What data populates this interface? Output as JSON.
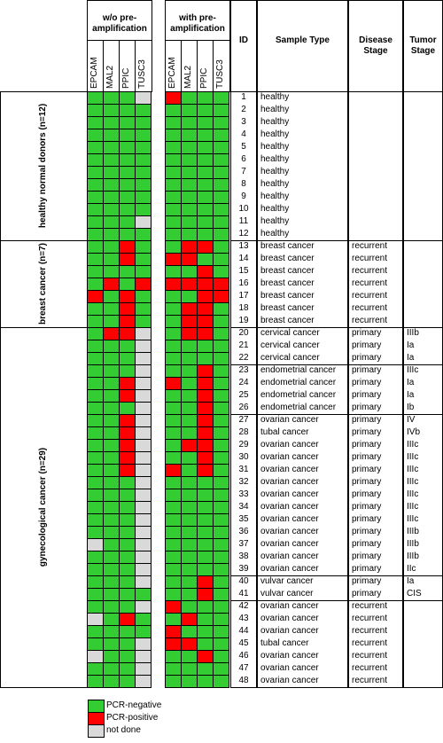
{
  "header": {
    "without": "w/o pre-amplification",
    "with": "with pre-amplification",
    "genes": [
      "EPCAM",
      "MAL2",
      "PPIC",
      "TUSC3"
    ],
    "id": "ID",
    "sample_type": "Sample Type",
    "disease_stage": "Disease Stage",
    "tumor_stage": "Tumor Stage"
  },
  "legend": [
    {
      "label": "PCR-negative",
      "color": "#33cc33"
    },
    {
      "label": "PCR-positive",
      "color": "#ff0000"
    },
    {
      "label": "not done",
      "color": "#d9d9d9"
    }
  ],
  "groups": [
    {
      "label": "healthy normal donors (n=12)",
      "blocks": [
        [
          {
            "id": 1,
            "sample_type": "healthy",
            "without": [
              0,
              0,
              0,
              2
            ],
            "with": [
              1,
              0,
              0,
              0
            ]
          },
          {
            "id": 2,
            "sample_type": "healthy",
            "without": [
              0,
              0,
              0,
              0
            ],
            "with": [
              0,
              0,
              0,
              0
            ]
          },
          {
            "id": 3,
            "sample_type": "healthy",
            "without": [
              0,
              0,
              0,
              0
            ],
            "with": [
              0,
              0,
              0,
              0
            ]
          },
          {
            "id": 4,
            "sample_type": "healthy",
            "without": [
              0,
              0,
              0,
              0
            ],
            "with": [
              0,
              0,
              0,
              0
            ]
          },
          {
            "id": 5,
            "sample_type": "healthy",
            "without": [
              0,
              0,
              0,
              0
            ],
            "with": [
              0,
              0,
              0,
              0
            ]
          },
          {
            "id": 6,
            "sample_type": "healthy",
            "without": [
              0,
              0,
              0,
              0
            ],
            "with": [
              0,
              0,
              0,
              0
            ]
          },
          {
            "id": 7,
            "sample_type": "healthy",
            "without": [
              0,
              0,
              0,
              0
            ],
            "with": [
              0,
              0,
              0,
              0
            ]
          },
          {
            "id": 8,
            "sample_type": "healthy",
            "without": [
              0,
              0,
              0,
              0
            ],
            "with": [
              0,
              0,
              0,
              0
            ]
          },
          {
            "id": 9,
            "sample_type": "healthy",
            "without": [
              0,
              0,
              0,
              0
            ],
            "with": [
              0,
              0,
              0,
              0
            ]
          },
          {
            "id": 10,
            "sample_type": "healthy",
            "without": [
              0,
              0,
              0,
              0
            ],
            "with": [
              0,
              0,
              0,
              0
            ]
          },
          {
            "id": 11,
            "sample_type": "healthy",
            "without": [
              0,
              0,
              0,
              2
            ],
            "with": [
              0,
              0,
              0,
              0
            ]
          },
          {
            "id": 12,
            "sample_type": "healthy",
            "without": [
              0,
              0,
              0,
              0
            ],
            "with": [
              0,
              0,
              0,
              0
            ]
          }
        ]
      ]
    },
    {
      "label": "breast cancer (n=7)",
      "blocks": [
        [
          {
            "id": 13,
            "sample_type": "breast cancer",
            "disease_stage": "recurrent",
            "without": [
              0,
              0,
              1,
              0
            ],
            "with": [
              0,
              1,
              1,
              0
            ]
          },
          {
            "id": 14,
            "sample_type": "breast cancer",
            "disease_stage": "recurrent",
            "without": [
              0,
              0,
              1,
              0
            ],
            "with": [
              1,
              1,
              0,
              0
            ]
          },
          {
            "id": 15,
            "sample_type": "breast cancer",
            "disease_stage": "recurrent",
            "without": [
              0,
              0,
              0,
              0
            ],
            "with": [
              0,
              0,
              1,
              0
            ]
          },
          {
            "id": 16,
            "sample_type": "breast cancer",
            "disease_stage": "recurrent",
            "without": [
              0,
              1,
              0,
              1
            ],
            "with": [
              1,
              1,
              1,
              1
            ]
          },
          {
            "id": 17,
            "sample_type": "breast cancer",
            "disease_stage": "recurrent",
            "without": [
              1,
              0,
              1,
              0
            ],
            "with": [
              0,
              0,
              1,
              1
            ]
          },
          {
            "id": 18,
            "sample_type": "breast cancer",
            "disease_stage": "recurrent",
            "without": [
              0,
              0,
              1,
              0
            ],
            "with": [
              0,
              1,
              1,
              0
            ]
          },
          {
            "id": 19,
            "sample_type": "breast cancer",
            "disease_stage": "recurrent",
            "without": [
              0,
              0,
              1,
              0
            ],
            "with": [
              0,
              1,
              1,
              0
            ]
          }
        ]
      ]
    },
    {
      "label": "gynecological cancer (n=29)",
      "blocks": [
        [
          {
            "id": 20,
            "sample_type": "cervical cancer",
            "disease_stage": "primary",
            "tumor_stage": "IIIb",
            "without": [
              0,
              1,
              1,
              2
            ],
            "with": [
              0,
              1,
              1,
              0
            ]
          },
          {
            "id": 21,
            "sample_type": "cervical cancer",
            "disease_stage": "primary",
            "tumor_stage": "Ia",
            "without": [
              0,
              0,
              0,
              2
            ],
            "with": [
              0,
              0,
              0,
              0
            ]
          },
          {
            "id": 22,
            "sample_type": "cervical cancer",
            "disease_stage": "primary",
            "tumor_stage": "Ia",
            "without": [
              0,
              0,
              0,
              2
            ],
            "with": [
              0,
              0,
              0,
              0
            ]
          }
        ],
        [
          {
            "id": 23,
            "sample_type": "endometrial cancer",
            "disease_stage": "primary",
            "tumor_stage": "IIIc",
            "without": [
              0,
              0,
              0,
              2
            ],
            "with": [
              0,
              0,
              1,
              0
            ]
          },
          {
            "id": 24,
            "sample_type": "endometrial cancer",
            "disease_stage": "primary",
            "tumor_stage": "Ia",
            "without": [
              0,
              0,
              1,
              2
            ],
            "with": [
              1,
              0,
              1,
              0
            ]
          },
          {
            "id": 25,
            "sample_type": "endometrial cancer",
            "disease_stage": "primary",
            "tumor_stage": "Ia",
            "without": [
              0,
              0,
              1,
              2
            ],
            "with": [
              0,
              0,
              1,
              0
            ]
          },
          {
            "id": 26,
            "sample_type": "endometrial cancer",
            "disease_stage": "primary",
            "tumor_stage": "Ib",
            "without": [
              0,
              0,
              0,
              2
            ],
            "with": [
              0,
              0,
              1,
              0
            ]
          }
        ],
        [
          {
            "id": 27,
            "sample_type": "ovarian cancer",
            "disease_stage": "primary",
            "tumor_stage": "IV",
            "without": [
              0,
              0,
              1,
              2
            ],
            "with": [
              0,
              0,
              1,
              0
            ]
          },
          {
            "id": 28,
            "sample_type": "tubal cancer",
            "disease_stage": "primary",
            "tumor_stage": "IVb",
            "without": [
              0,
              0,
              1,
              2
            ],
            "with": [
              0,
              0,
              1,
              0
            ]
          },
          {
            "id": 29,
            "sample_type": "ovarian cancer",
            "disease_stage": "primary",
            "tumor_stage": "IIIc",
            "without": [
              0,
              0,
              1,
              2
            ],
            "with": [
              0,
              1,
              1,
              0
            ]
          },
          {
            "id": 30,
            "sample_type": "ovarian cancer",
            "disease_stage": "primary",
            "tumor_stage": "IIIc",
            "without": [
              0,
              0,
              1,
              2
            ],
            "with": [
              0,
              0,
              1,
              0
            ]
          },
          {
            "id": 31,
            "sample_type": "ovarian cancer",
            "disease_stage": "primary",
            "tumor_stage": "IIIc",
            "without": [
              0,
              0,
              1,
              2
            ],
            "with": [
              1,
              0,
              1,
              0
            ]
          },
          {
            "id": 32,
            "sample_type": "ovarian cancer",
            "disease_stage": "primary",
            "tumor_stage": "IIIc",
            "without": [
              0,
              0,
              0,
              2
            ],
            "with": [
              0,
              0,
              0,
              0
            ]
          },
          {
            "id": 33,
            "sample_type": "ovarian cancer",
            "disease_stage": "primary",
            "tumor_stage": "IIIc",
            "without": [
              0,
              0,
              0,
              2
            ],
            "with": [
              0,
              0,
              0,
              0
            ]
          },
          {
            "id": 34,
            "sample_type": "ovarian cancer",
            "disease_stage": "primary",
            "tumor_stage": "IIIc",
            "without": [
              0,
              0,
              0,
              2
            ],
            "with": [
              0,
              0,
              0,
              0
            ]
          },
          {
            "id": 35,
            "sample_type": "ovarian cancer",
            "disease_stage": "primary",
            "tumor_stage": "IIIc",
            "without": [
              0,
              0,
              0,
              2
            ],
            "with": [
              0,
              0,
              0,
              0
            ]
          },
          {
            "id": 36,
            "sample_type": "ovarian cancer",
            "disease_stage": "primary",
            "tumor_stage": "IIIb",
            "without": [
              0,
              0,
              0,
              2
            ],
            "with": [
              0,
              0,
              0,
              0
            ]
          },
          {
            "id": 37,
            "sample_type": "ovarian cancer",
            "disease_stage": "primary",
            "tumor_stage": "IIIb",
            "without": [
              2,
              0,
              0,
              2
            ],
            "with": [
              0,
              0,
              0,
              0
            ]
          },
          {
            "id": 38,
            "sample_type": "ovarian cancer",
            "disease_stage": "primary",
            "tumor_stage": "IIIb",
            "without": [
              0,
              0,
              0,
              2
            ],
            "with": [
              0,
              0,
              0,
              0
            ]
          },
          {
            "id": 39,
            "sample_type": "ovarian cancer",
            "disease_stage": "primary",
            "tumor_stage": "IIc",
            "without": [
              0,
              0,
              0,
              2
            ],
            "with": [
              0,
              0,
              0,
              0
            ]
          }
        ],
        [
          {
            "id": 40,
            "sample_type": "vulvar cancer",
            "disease_stage": "primary",
            "tumor_stage": "Ia",
            "without": [
              0,
              0,
              0,
              2
            ],
            "with": [
              0,
              0,
              1,
              0
            ]
          },
          {
            "id": 41,
            "sample_type": "vulvar cancer",
            "disease_stage": "primary",
            "tumor_stage": "CIS",
            "without": [
              0,
              0,
              0,
              0
            ],
            "with": [
              0,
              0,
              1,
              0
            ]
          }
        ],
        [
          {
            "id": 42,
            "sample_type": "ovarian cancer",
            "disease_stage": "recurrent",
            "without": [
              0,
              0,
              0,
              2
            ],
            "with": [
              1,
              0,
              0,
              0
            ]
          },
          {
            "id": 43,
            "sample_type": "ovarian cancer",
            "disease_stage": "recurrent",
            "without": [
              2,
              0,
              1,
              0
            ],
            "with": [
              0,
              1,
              0,
              0
            ]
          },
          {
            "id": 44,
            "sample_type": "ovarian cancer",
            "disease_stage": "recurrent",
            "without": [
              0,
              0,
              0,
              0
            ],
            "with": [
              1,
              0,
              0,
              0
            ]
          },
          {
            "id": 45,
            "sample_type": "tubal cancer",
            "disease_stage": "recurrent",
            "without": [
              0,
              0,
              0,
              2
            ],
            "with": [
              1,
              1,
              0,
              0
            ]
          },
          {
            "id": 46,
            "sample_type": "ovarian cancer",
            "disease_stage": "recurrent",
            "without": [
              2,
              0,
              0,
              2
            ],
            "with": [
              0,
              0,
              1,
              0
            ]
          },
          {
            "id": 47,
            "sample_type": "ovarian cancer",
            "disease_stage": "recurrent",
            "without": [
              0,
              0,
              0,
              2
            ],
            "with": [
              0,
              0,
              0,
              0
            ]
          },
          {
            "id": 48,
            "sample_type": "ovarian cancer",
            "disease_stage": "recurrent",
            "without": [
              0,
              0,
              0,
              2
            ],
            "with": [
              0,
              0,
              0,
              0
            ]
          }
        ]
      ]
    }
  ]
}
